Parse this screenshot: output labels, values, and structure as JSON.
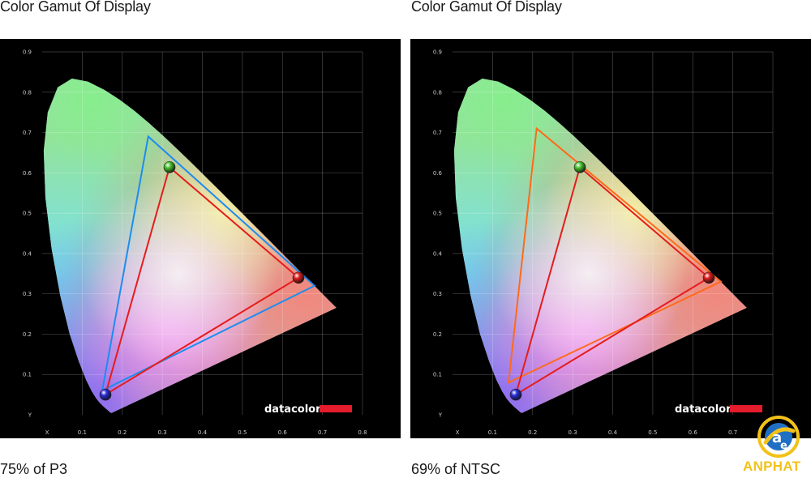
{
  "chart_data": [
    {
      "type": "line",
      "title": "Color Gamut Of Display",
      "caption": "75% of P3",
      "xlabel": "X",
      "ylabel": "Y",
      "xlim": [
        0,
        0.8
      ],
      "ylim": [
        0,
        0.9
      ],
      "x_ticks": [
        "0.1",
        "0.2",
        "0.3",
        "0.4",
        "0.5",
        "0.6",
        "0.7",
        "0.8"
      ],
      "y_ticks": [
        "0.1",
        "0.2",
        "0.3",
        "0.4",
        "0.5",
        "0.6",
        "0.7",
        "0.8",
        "0.9"
      ],
      "grid": true,
      "watermark": "datacolor",
      "series": [
        {
          "color": "#1e8cf0",
          "points": [
            [
              0.68,
              0.32
            ],
            [
              0.265,
              0.69
            ],
            [
              0.15,
              0.06
            ]
          ]
        },
        {
          "color": "#e51c1c",
          "points": [
            [
              0.64,
              0.34
            ],
            [
              0.318,
              0.614
            ],
            [
              0.158,
              0.05
            ]
          ]
        }
      ],
      "primaries": [
        {
          "color": "#dd1a1a",
          "x": 0.64,
          "y": 0.34
        },
        {
          "color": "#46c22c",
          "x": 0.318,
          "y": 0.614
        },
        {
          "color": "#2a2ad8",
          "x": 0.158,
          "y": 0.05
        }
      ]
    },
    {
      "type": "line",
      "title": "Color Gamut Of Display",
      "caption": "69% of NTSC",
      "xlabel": "X",
      "ylabel": "Y",
      "xlim": [
        0,
        0.8
      ],
      "ylim": [
        0,
        0.9
      ],
      "x_ticks": [
        "0.1",
        "0.2",
        "0.3",
        "0.4",
        "0.5",
        "0.6",
        "0.7",
        "0.8"
      ],
      "y_ticks": [
        "0.1",
        "0.2",
        "0.3",
        "0.4",
        "0.5",
        "0.6",
        "0.7",
        "0.8",
        "0.9"
      ],
      "grid": true,
      "watermark": "datacolor",
      "series": [
        {
          "color": "#ff6a1a",
          "points": [
            [
              0.67,
              0.33
            ],
            [
              0.21,
              0.71
            ],
            [
              0.14,
              0.08
            ]
          ]
        },
        {
          "color": "#e51c1c",
          "points": [
            [
              0.64,
              0.34
            ],
            [
              0.318,
              0.614
            ],
            [
              0.158,
              0.05
            ]
          ]
        }
      ],
      "primaries": [
        {
          "color": "#dd1a1a",
          "x": 0.64,
          "y": 0.34
        },
        {
          "color": "#46c22c",
          "x": 0.318,
          "y": 0.614
        },
        {
          "color": "#2a2ad8",
          "x": 0.158,
          "y": 0.05
        }
      ]
    }
  ],
  "logo": {
    "word": "ANPHAT"
  }
}
